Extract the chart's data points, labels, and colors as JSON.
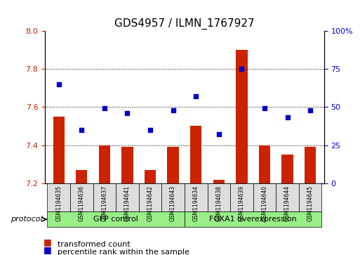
{
  "title": "GDS4957 / ILMN_1767927",
  "samples": [
    "GSM1194635",
    "GSM1194636",
    "GSM1194637",
    "GSM1194641",
    "GSM1194642",
    "GSM1194643",
    "GSM1194634",
    "GSM1194638",
    "GSM1194639",
    "GSM1194640",
    "GSM1194644",
    "GSM1194645"
  ],
  "bar_values": [
    7.55,
    7.27,
    7.4,
    7.39,
    7.27,
    7.39,
    7.5,
    7.22,
    7.9,
    7.4,
    7.35,
    7.39
  ],
  "dot_values_pct": [
    65,
    35,
    49,
    46,
    35,
    48,
    57,
    32,
    75,
    49,
    43,
    48
  ],
  "bar_baseline": 7.2,
  "ylim_left": [
    7.2,
    8.0
  ],
  "ylim_right": [
    0,
    100
  ],
  "yticks_left": [
    7.2,
    7.4,
    7.6,
    7.8,
    8.0
  ],
  "yticks_right": [
    0,
    25,
    50,
    75,
    100
  ],
  "ytick_labels_right": [
    "0",
    "25",
    "50",
    "75",
    "100%"
  ],
  "bar_color": "#CC2200",
  "dot_color": "#0000CC",
  "group1_label": "GFP control",
  "group2_label": "FOXA1 overexpression",
  "group1_count": 6,
  "group2_count": 6,
  "protocol_label": "protocol",
  "legend_bar_label": "transformed count",
  "legend_dot_label": "percentile rank within the sample",
  "group_bg_color": "#99EE88",
  "sample_bg_color": "#DDDDDD",
  "grid_color": "#000000",
  "fig_width": 5.13,
  "fig_height": 3.63,
  "dpi": 100
}
